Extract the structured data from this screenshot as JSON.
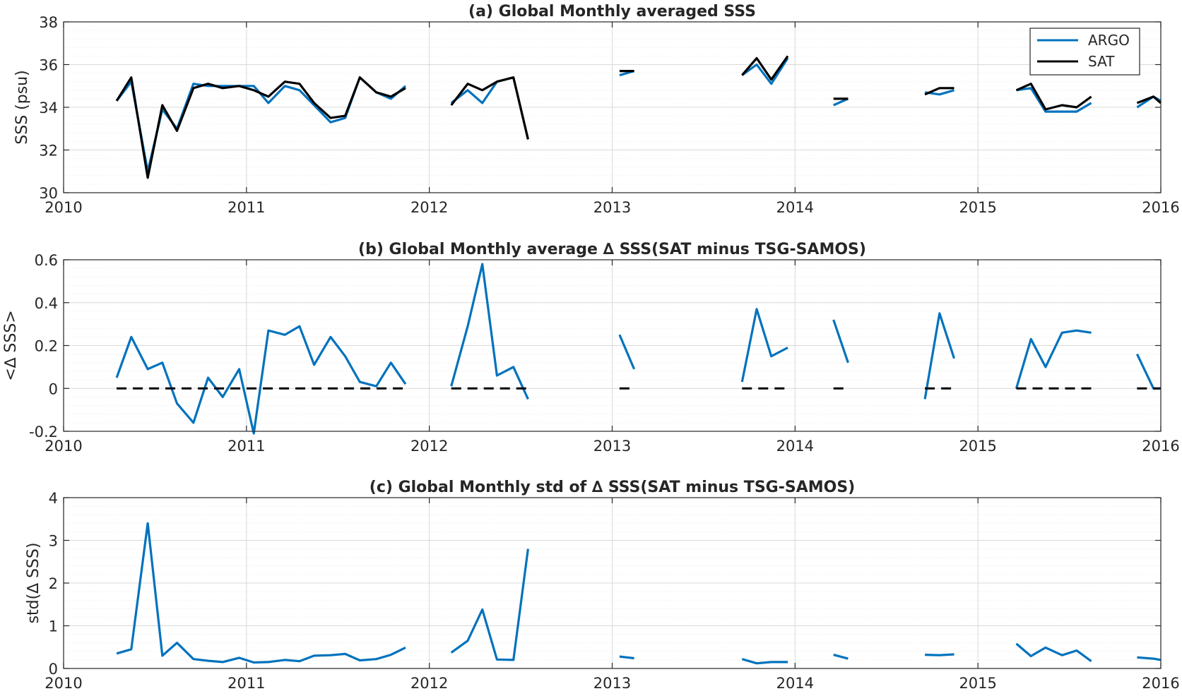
{
  "chart_data": [
    {
      "type": "line",
      "title": "(a) Global Monthly averaged SSS",
      "xlabel": "",
      "ylabel": "SSS (psu)",
      "xlim": [
        2010,
        2016
      ],
      "ylim": [
        30,
        38
      ],
      "xticks": [
        2010,
        2011,
        2012,
        2013,
        2014,
        2015,
        2016
      ],
      "yticks": [
        30,
        32,
        34,
        36,
        38
      ],
      "grid": true,
      "legend": "top-right",
      "series": [
        {
          "name": "ARGO",
          "color": "#0072BD",
          "x": [
            2010.29,
            2010.37,
            2010.46,
            2010.54,
            2010.62,
            2010.71,
            2010.79,
            2010.87,
            2010.96,
            2011.04,
            2011.12,
            2011.21,
            2011.29,
            2011.37,
            2011.46,
            2011.54,
            2011.62,
            2011.71,
            2011.79,
            2011.87,
            null,
            2012.12,
            2012.21,
            2012.29,
            2012.37,
            2012.46,
            2012.54,
            null,
            2013.04,
            2013.12,
            null,
            2013.71,
            2013.79,
            2013.87,
            2013.96,
            null,
            2014.21,
            2014.29,
            null,
            2014.71,
            2014.79,
            2014.87,
            null,
            2015.21,
            2015.29,
            2015.37,
            2015.46,
            2015.54,
            2015.62,
            null,
            2015.87,
            2015.96,
            2016.0
          ],
          "y": [
            34.3,
            35.2,
            31.0,
            33.9,
            33.0,
            35.1,
            35.0,
            35.0,
            35.0,
            35.0,
            34.2,
            35.0,
            34.8,
            34.1,
            33.3,
            33.5,
            35.4,
            34.7,
            34.4,
            35.0,
            null,
            34.2,
            34.8,
            34.2,
            35.2,
            35.4,
            32.5,
            null,
            35.5,
            35.7,
            null,
            35.5,
            36.0,
            35.1,
            36.3,
            null,
            34.1,
            34.4,
            null,
            34.7,
            34.6,
            34.8,
            null,
            34.8,
            34.9,
            33.8,
            33.8,
            33.8,
            34.2,
            null,
            34.0,
            34.5,
            34.3
          ]
        },
        {
          "name": "SAT",
          "color": "#000000",
          "x": [
            2010.29,
            2010.37,
            2010.46,
            2010.54,
            2010.62,
            2010.71,
            2010.79,
            2010.87,
            2010.96,
            2011.04,
            2011.12,
            2011.21,
            2011.29,
            2011.37,
            2011.46,
            2011.54,
            2011.62,
            2011.71,
            2011.79,
            2011.87,
            null,
            2012.12,
            2012.21,
            2012.29,
            2012.37,
            2012.46,
            2012.54,
            null,
            2013.04,
            2013.12,
            null,
            2013.71,
            2013.79,
            2013.87,
            2013.96,
            null,
            2014.21,
            2014.29,
            null,
            2014.71,
            2014.79,
            2014.87,
            null,
            2015.21,
            2015.29,
            2015.37,
            2015.46,
            2015.54,
            2015.62,
            null,
            2015.87,
            2015.96,
            2016.0
          ],
          "y": [
            34.3,
            35.4,
            30.7,
            34.1,
            32.9,
            34.9,
            35.1,
            34.9,
            35.0,
            34.8,
            34.5,
            35.2,
            35.1,
            34.2,
            33.5,
            33.6,
            35.4,
            34.7,
            34.5,
            34.9,
            null,
            34.1,
            35.1,
            34.8,
            35.2,
            35.4,
            32.5,
            null,
            35.7,
            35.7,
            null,
            35.5,
            36.3,
            35.3,
            36.4,
            null,
            34.4,
            34.4,
            null,
            34.6,
            34.9,
            34.9,
            null,
            34.8,
            35.1,
            33.9,
            34.1,
            34.0,
            34.5,
            null,
            34.2,
            34.5,
            34.2
          ]
        }
      ]
    },
    {
      "type": "line",
      "title": "(b) Global Monthly average ∆ SSS(SAT minus TSG-SAMOS)",
      "xlabel": "",
      "ylabel": "<∆ SSS>",
      "xlim": [
        2010,
        2016
      ],
      "ylim": [
        -0.2,
        0.6
      ],
      "xticks": [
        2010,
        2011,
        2012,
        2013,
        2014,
        2015,
        2016
      ],
      "yticks": [
        -0.2,
        0,
        0.2,
        0.4,
        0.6
      ],
      "grid": true,
      "series": [
        {
          "color": "#0072BD",
          "x": [
            2010.29,
            2010.37,
            2010.46,
            2010.54,
            2010.62,
            2010.71,
            2010.79,
            2010.87,
            2010.96,
            2011.04,
            2011.12,
            2011.21,
            2011.29,
            2011.37,
            2011.46,
            2011.54,
            2011.62,
            2011.71,
            2011.79,
            2011.87,
            null,
            2012.12,
            2012.21,
            2012.29,
            2012.37,
            2012.46,
            2012.54,
            null,
            2013.04,
            2013.12,
            null,
            2013.71,
            2013.79,
            2013.87,
            2013.96,
            null,
            2014.21,
            2014.29,
            null,
            2014.71,
            2014.79,
            2014.87,
            null,
            2015.21,
            2015.29,
            2015.37,
            2015.46,
            2015.54,
            2015.62,
            null,
            2015.87,
            2015.96,
            2016.0
          ],
          "y": [
            0.05,
            0.24,
            0.09,
            0.12,
            -0.07,
            -0.16,
            0.05,
            -0.04,
            0.09,
            -0.21,
            0.27,
            0.25,
            0.29,
            0.11,
            0.24,
            0.15,
            0.03,
            0.01,
            0.12,
            0.02,
            null,
            0.01,
            0.29,
            0.58,
            0.06,
            0.1,
            -0.05,
            null,
            0.25,
            0.09,
            null,
            0.03,
            0.37,
            0.15,
            0.19,
            null,
            0.32,
            0.12,
            null,
            -0.05,
            0.35,
            0.14,
            null,
            0.0,
            0.23,
            0.1,
            0.26,
            0.27,
            0.26,
            null,
            0.16,
            0.0,
            0.0
          ]
        },
        {
          "color": "#000000",
          "dashed": true,
          "segments": [
            [
              2010.29,
              2011.87
            ],
            [
              2012.12,
              2012.54
            ],
            [
              2013.04,
              2013.12
            ],
            [
              2013.71,
              2013.96
            ],
            [
              2014.21,
              2014.29
            ],
            [
              2014.71,
              2014.87
            ],
            [
              2015.21,
              2015.62
            ],
            [
              2015.87,
              2016.0
            ]
          ],
          "y": 0
        }
      ]
    },
    {
      "type": "line",
      "title": "(c) Global Monthly std of ∆ SSS(SAT minus TSG-SAMOS)",
      "xlabel": "",
      "ylabel": "std(∆ SSS)",
      "xlim": [
        2010,
        2016
      ],
      "ylim": [
        0,
        4
      ],
      "xticks": [
        2010,
        2011,
        2012,
        2013,
        2014,
        2015,
        2016
      ],
      "yticks": [
        0,
        1,
        2,
        3,
        4
      ],
      "grid": true,
      "series": [
        {
          "color": "#0072BD",
          "x": [
            2010.29,
            2010.37,
            2010.46,
            2010.54,
            2010.62,
            2010.71,
            2010.79,
            2010.87,
            2010.96,
            2011.04,
            2011.12,
            2011.21,
            2011.29,
            2011.37,
            2011.46,
            2011.54,
            2011.62,
            2011.71,
            2011.79,
            2011.87,
            null,
            2012.12,
            2012.21,
            2012.29,
            2012.37,
            2012.46,
            2012.54,
            null,
            2013.04,
            2013.12,
            null,
            2013.71,
            2013.79,
            2013.87,
            2013.96,
            null,
            2014.21,
            2014.29,
            null,
            2014.71,
            2014.79,
            2014.87,
            null,
            2015.21,
            2015.29,
            2015.37,
            2015.46,
            2015.54,
            2015.62,
            null,
            2015.87,
            2015.96,
            2016.0
          ],
          "y": [
            0.35,
            0.45,
            3.4,
            0.3,
            0.6,
            0.22,
            0.18,
            0.15,
            0.25,
            0.14,
            0.15,
            0.2,
            0.17,
            0.3,
            0.31,
            0.34,
            0.19,
            0.22,
            0.32,
            0.49,
            null,
            0.37,
            0.65,
            1.38,
            0.21,
            0.2,
            2.8,
            null,
            0.28,
            0.24,
            null,
            0.22,
            0.12,
            0.15,
            0.15,
            null,
            0.32,
            0.23,
            null,
            0.32,
            0.31,
            0.33,
            null,
            0.58,
            0.29,
            0.49,
            0.31,
            0.42,
            0.17,
            null,
            0.26,
            0.23,
            0.2
          ]
        }
      ]
    }
  ],
  "x_tick_labels": [
    "2010",
    "2011",
    "2012",
    "2013",
    "2014",
    "2015",
    "2016"
  ],
  "panel_a": {
    "y_tick_labels": [
      "30",
      "32",
      "34",
      "36",
      "38"
    ],
    "legend": {
      "argo_label": "ARGO",
      "sat_label": "SAT"
    }
  },
  "panel_b": {
    "y_tick_labels": [
      "-0.2",
      "0",
      "0.2",
      "0.4",
      "0.6"
    ]
  },
  "panel_c": {
    "y_tick_labels": [
      "0",
      "1",
      "2",
      "3",
      "4"
    ]
  },
  "colors": {
    "argo": "#0072BD",
    "sat": "#000000",
    "major_grid": "#d9d9d9",
    "minor_grid": "#e6e6e6"
  }
}
